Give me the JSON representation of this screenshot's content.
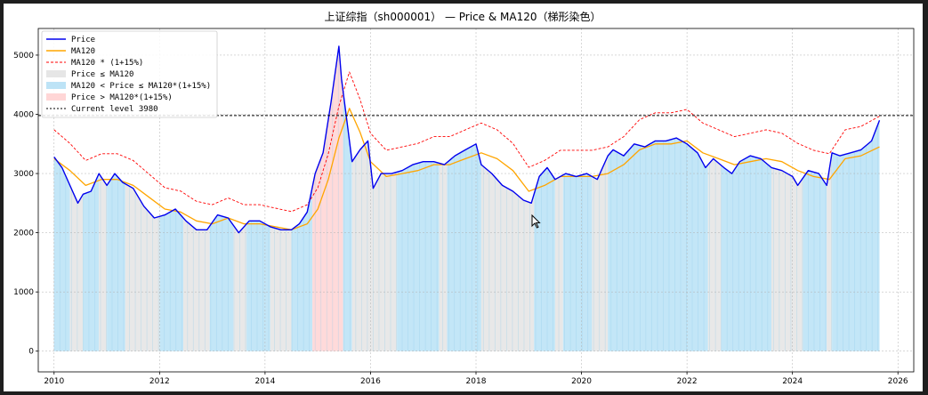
{
  "chart_data": {
    "type": "line",
    "title": "上证综指（sh000001） — Price & MA120（梯形染色）",
    "xlim": [
      2009.7,
      2026.3
    ],
    "ylim": [
      -350,
      5450
    ],
    "x_ticks": [
      2010,
      2012,
      2014,
      2016,
      2018,
      2020,
      2022,
      2024,
      2026
    ],
    "y_ticks": [
      0,
      1000,
      2000,
      3000,
      4000,
      5000
    ],
    "grid": true,
    "legend_placement": "top-left",
    "current_level": 3980,
    "colors": {
      "price": "#0000ee",
      "ma120": "#ffa500",
      "upper": "#ff0000",
      "below": "#e6e6e6",
      "between": "#bde3f6",
      "above": "#ffd6d6",
      "level": "#000000"
    },
    "legend": [
      {
        "kind": "line",
        "color": "#0000ee",
        "label": "Price"
      },
      {
        "kind": "line",
        "color": "#ffa500",
        "label": "MA120"
      },
      {
        "kind": "dash",
        "color": "#ff0000",
        "label": "MA120 * (1+15%)"
      },
      {
        "kind": "patch",
        "color": "#e6e6e6",
        "label": "Price ≤ MA120"
      },
      {
        "kind": "patch",
        "color": "#bde3f6",
        "label": "MA120 < Price ≤ MA120*(1+15%)"
      },
      {
        "kind": "patch",
        "color": "#ffd6d6",
        "label": "Price > MA120*(1+15%)"
      },
      {
        "kind": "kdash",
        "color": "#000000",
        "label": "Current level 3980"
      }
    ],
    "series": [
      {
        "name": "Price",
        "x": [
          2010.0,
          2010.15,
          2010.3,
          2010.45,
          2010.55,
          2010.7,
          2010.85,
          2011.0,
          2011.15,
          2011.3,
          2011.5,
          2011.7,
          2011.9,
          2012.1,
          2012.3,
          2012.5,
          2012.7,
          2012.9,
          2013.1,
          2013.3,
          2013.5,
          2013.7,
          2013.9,
          2014.1,
          2014.3,
          2014.5,
          2014.65,
          2014.8,
          2014.95,
          2015.1,
          2015.25,
          2015.4,
          2015.45,
          2015.55,
          2015.65,
          2015.8,
          2015.95,
          2016.05,
          2016.2,
          2016.4,
          2016.6,
          2016.8,
          2017.0,
          2017.2,
          2017.4,
          2017.6,
          2017.8,
          2018.0,
          2018.1,
          2018.3,
          2018.5,
          2018.7,
          2018.9,
          2019.05,
          2019.2,
          2019.35,
          2019.5,
          2019.7,
          2019.9,
          2020.1,
          2020.3,
          2020.5,
          2020.6,
          2020.8,
          2021.0,
          2021.2,
          2021.4,
          2021.6,
          2021.8,
          2022.0,
          2022.2,
          2022.35,
          2022.5,
          2022.7,
          2022.85,
          2023.0,
          2023.2,
          2023.4,
          2023.6,
          2023.8,
          2024.0,
          2024.1,
          2024.3,
          2024.5,
          2024.65,
          2024.75,
          2024.9,
          2025.1,
          2025.3,
          2025.5,
          2025.65
        ],
        "y": [
          3280,
          3100,
          2800,
          2500,
          2650,
          2700,
          3000,
          2800,
          3000,
          2850,
          2750,
          2450,
          2250,
          2300,
          2400,
          2200,
          2050,
          2050,
          2300,
          2250,
          2000,
          2200,
          2200,
          2100,
          2050,
          2050,
          2150,
          2350,
          3000,
          3350,
          4200,
          5150,
          4600,
          3900,
          3200,
          3400,
          3550,
          2750,
          3000,
          3000,
          3050,
          3150,
          3200,
          3200,
          3150,
          3300,
          3400,
          3500,
          3150,
          3000,
          2800,
          2700,
          2550,
          2500,
          2950,
          3100,
          2900,
          3000,
          2950,
          3000,
          2900,
          3300,
          3400,
          3300,
          3500,
          3450,
          3550,
          3550,
          3600,
          3500,
          3350,
          3100,
          3250,
          3100,
          3000,
          3200,
          3300,
          3250,
          3100,
          3050,
          2950,
          2800,
          3050,
          3000,
          2800,
          3350,
          3300,
          3350,
          3400,
          3550,
          3900
        ]
      },
      {
        "name": "MA120",
        "x": [
          2010.0,
          2010.3,
          2010.6,
          2010.9,
          2011.2,
          2011.5,
          2011.8,
          2012.1,
          2012.4,
          2012.7,
          2013.0,
          2013.3,
          2013.6,
          2013.9,
          2014.2,
          2014.5,
          2014.8,
          2015.0,
          2015.2,
          2015.4,
          2015.6,
          2015.8,
          2016.0,
          2016.3,
          2016.6,
          2016.9,
          2017.2,
          2017.5,
          2017.8,
          2018.1,
          2018.4,
          2018.7,
          2019.0,
          2019.3,
          2019.6,
          2019.9,
          2020.2,
          2020.5,
          2020.8,
          2021.1,
          2021.4,
          2021.7,
          2022.0,
          2022.3,
          2022.6,
          2022.9,
          2023.2,
          2023.5,
          2023.8,
          2024.1,
          2024.4,
          2024.7,
          2025.0,
          2025.3,
          2025.65
        ],
        "y": [
          3250,
          3050,
          2800,
          2900,
          2900,
          2800,
          2600,
          2400,
          2350,
          2200,
          2150,
          2250,
          2150,
          2150,
          2100,
          2050,
          2150,
          2400,
          2900,
          3600,
          4100,
          3700,
          3200,
          2950,
          3000,
          3050,
          3150,
          3150,
          3250,
          3350,
          3250,
          3050,
          2700,
          2800,
          2950,
          2950,
          2950,
          3000,
          3150,
          3400,
          3500,
          3500,
          3550,
          3350,
          3250,
          3150,
          3200,
          3250,
          3200,
          3050,
          2950,
          2900,
          3250,
          3300,
          3450
        ]
      },
      {
        "name": "MA120 * (1+15%)",
        "x": [
          2010.0,
          2010.3,
          2010.6,
          2010.9,
          2011.2,
          2011.5,
          2011.8,
          2012.1,
          2012.4,
          2012.7,
          2013.0,
          2013.3,
          2013.6,
          2013.9,
          2014.2,
          2014.5,
          2014.8,
          2015.0,
          2015.2,
          2015.4,
          2015.6,
          2015.8,
          2016.0,
          2016.3,
          2016.6,
          2016.9,
          2017.2,
          2017.5,
          2017.8,
          2018.1,
          2018.4,
          2018.7,
          2019.0,
          2019.3,
          2019.6,
          2019.9,
          2020.2,
          2020.5,
          2020.8,
          2021.1,
          2021.4,
          2021.7,
          2022.0,
          2022.3,
          2022.6,
          2022.9,
          2023.2,
          2023.5,
          2023.8,
          2024.1,
          2024.4,
          2024.7,
          2025.0,
          2025.3,
          2025.65
        ],
        "y": [
          3738,
          3508,
          3220,
          3335,
          3335,
          3220,
          2990,
          2760,
          2703,
          2530,
          2473,
          2588,
          2473,
          2473,
          2415,
          2358,
          2473,
          2760,
          3335,
          4140,
          4715,
          4255,
          3680,
          3393,
          3450,
          3508,
          3623,
          3623,
          3738,
          3853,
          3738,
          3508,
          3105,
          3220,
          3393,
          3393,
          3393,
          3450,
          3623,
          3910,
          4025,
          4025,
          4083,
          3853,
          3738,
          3623,
          3680,
          3738,
          3680,
          3508,
          3393,
          3335,
          3738,
          3795,
          3968
        ]
      }
    ],
    "zones": [
      {
        "from": 2010.0,
        "to": 2010.3,
        "state": "between"
      },
      {
        "from": 2010.3,
        "to": 2010.55,
        "state": "below"
      },
      {
        "from": 2010.55,
        "to": 2010.85,
        "state": "between"
      },
      {
        "from": 2010.85,
        "to": 2011.0,
        "state": "below"
      },
      {
        "from": 2011.0,
        "to": 2011.35,
        "state": "between"
      },
      {
        "from": 2011.35,
        "to": 2012.0,
        "state": "below"
      },
      {
        "from": 2012.0,
        "to": 2012.45,
        "state": "between"
      },
      {
        "from": 2012.45,
        "to": 2012.95,
        "state": "below"
      },
      {
        "from": 2012.95,
        "to": 2013.4,
        "state": "between"
      },
      {
        "from": 2013.4,
        "to": 2013.65,
        "state": "below"
      },
      {
        "from": 2013.65,
        "to": 2014.1,
        "state": "between"
      },
      {
        "from": 2014.1,
        "to": 2014.5,
        "state": "below"
      },
      {
        "from": 2014.5,
        "to": 2014.9,
        "state": "between"
      },
      {
        "from": 2014.9,
        "to": 2015.48,
        "state": "above"
      },
      {
        "from": 2015.48,
        "to": 2015.65,
        "state": "between"
      },
      {
        "from": 2015.65,
        "to": 2016.5,
        "state": "below"
      },
      {
        "from": 2016.5,
        "to": 2017.3,
        "state": "between"
      },
      {
        "from": 2017.3,
        "to": 2017.45,
        "state": "below"
      },
      {
        "from": 2017.45,
        "to": 2018.1,
        "state": "between"
      },
      {
        "from": 2018.1,
        "to": 2019.1,
        "state": "below"
      },
      {
        "from": 2019.1,
        "to": 2019.5,
        "state": "between"
      },
      {
        "from": 2019.5,
        "to": 2019.65,
        "state": "below"
      },
      {
        "from": 2019.65,
        "to": 2020.2,
        "state": "between"
      },
      {
        "from": 2020.2,
        "to": 2020.5,
        "state": "below"
      },
      {
        "from": 2020.5,
        "to": 2022.4,
        "state": "between"
      },
      {
        "from": 2022.4,
        "to": 2022.65,
        "state": "below"
      },
      {
        "from": 2022.65,
        "to": 2023.6,
        "state": "between"
      },
      {
        "from": 2023.6,
        "to": 2024.2,
        "state": "below"
      },
      {
        "from": 2024.2,
        "to": 2024.65,
        "state": "between"
      },
      {
        "from": 2024.65,
        "to": 2024.75,
        "state": "below"
      },
      {
        "from": 2024.75,
        "to": 2025.65,
        "state": "between"
      }
    ]
  }
}
